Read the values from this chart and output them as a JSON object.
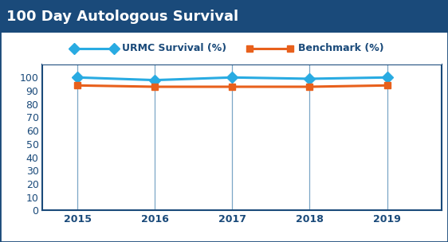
{
  "title": "100 Day Autologous Survival",
  "title_bg_color": "#1a4a7a",
  "title_text_color": "#ffffff",
  "title_fontsize": 13,
  "years": [
    2015,
    2016,
    2017,
    2018,
    2019
  ],
  "urmc_values": [
    100,
    98,
    100,
    99,
    100
  ],
  "benchmark_values": [
    94,
    93,
    93,
    93,
    94
  ],
  "urmc_color": "#29abe2",
  "benchmark_color": "#e8601c",
  "border_color": "#1a4a7a",
  "grid_color": "#7ba7c7",
  "ylim": [
    0,
    110
  ],
  "yticks": [
    0,
    10,
    20,
    30,
    40,
    50,
    60,
    70,
    80,
    90,
    100
  ],
  "legend_urmc": "URMC Survival (%)",
  "legend_benchmark": "Benchmark (%)",
  "bg_color": "#ffffff"
}
